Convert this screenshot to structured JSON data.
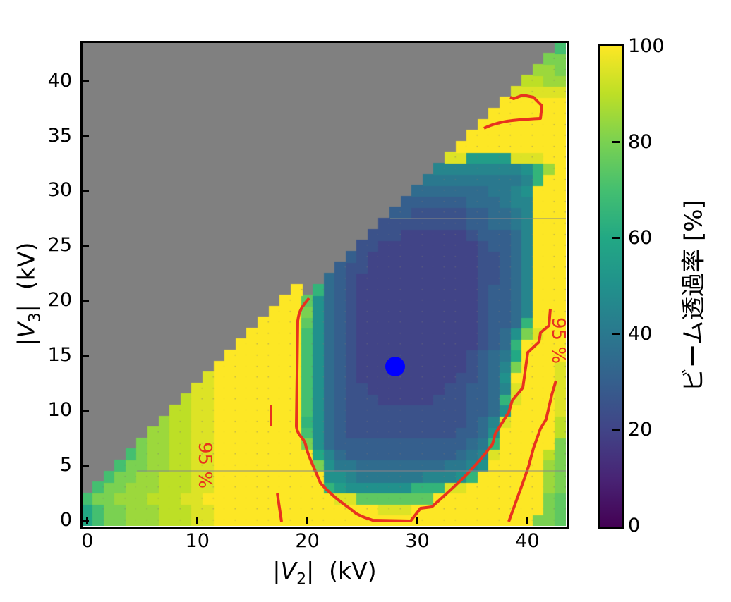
{
  "chart_data": {
    "type": "heatmap",
    "title": "",
    "xlabel": "|V2|  (kV)",
    "ylabel": "|V3|  (kV)",
    "xlim": [
      -0.5,
      43.5
    ],
    "ylim": [
      -0.5,
      43.5
    ],
    "xticks": [
      0,
      10,
      20,
      30,
      40
    ],
    "yticks": [
      0,
      5,
      10,
      15,
      20,
      25,
      30,
      35,
      40
    ],
    "colorbar": {
      "label": "ビーム透過率 [%]",
      "colormap": "viridis",
      "range": [
        0,
        100
      ],
      "ticks": [
        0,
        20,
        40,
        60,
        80,
        100
      ]
    },
    "masked_color": "#808080",
    "masked_region": "|V3| > |V2| + 1 (gray, no data)",
    "z_encoding": "each row string = V3 from 0 (first row) to 43; each char is one |V2| cell from 0 to 43; a=0%, b=5%, ... u=100% (value = index*5); '.' = no data",
    "z": [
      "moqqrrrsssttuuuuuuuuuuuuuuuuuuuuuuuuuuuuuqqpo",
      "moqqrrrsssttuuuuuuuuuuuuuuutttuuuuuuuuuuuuqpo",
      "oqqrrrsssttuuuuuuuuuuuuttpppppppuuuuuuuuuuqpo",
      ".oqqrrrsssttuuuuuuuuuunlkkkkkknnnttuuuuuuurqp",
      "..oqqrrsssttuuuuuuuuuukkjiiiiiijjjknuuuuuurqp",
      "...oqqrrssttuuuuuuuuuqkiihhhhhhhhiijkuuuuurqp",
      "....oqrrssttuuuuuuuuumjhgggggggggghijtuuuusqp",
      ".....qrrssttuuuuuuuuqkhgggggggggggghinuuuuuqp",
      "......rrssttuuuuuuuuokhgffffffffffgghkuuuuusp",
      ".......rssttuuuuuuuunkhgfffffffffffghjtuuuusq",
      "........ssttuuuuuuuuokhgfffffffffffgghkuuuuts",
      ".........sttuuuuuuuuokhgfffeeeeefffgghntuuuts",
      "..........ttuuuuuuuuokhgffeeeeeeeffgghjtuuuts",
      "...........tuuuuuuuuokhgfeeeeeeeeeffghkuuuuts",
      "............uuuuuuuuokhgfeeeeeeeeeefghjquuuts",
      ".............uuuuuuuokhgfeeeeeeeeeefghimuuuuu",
      "..............uuuuuuokhgfeeeeeeeeeeefghnuuuuu",
      "...............uuuuuokhgfeeeeeeeeeeefghkqtuuu",
      "................uuuupkhgfeeeeeeeeeeefgghnuuuu",
      ".................uuuqkhgfeeeeeeeeeeefgghjuuuu",
      "..................uupkhgfeeeeeeeeeeefgghjuuuu",
      "...................u.nhgfeeeeeeeeeeefgghjuuuu",
      "......................hgfeeeeeeeeeeeffghjuuuu",
      ".......................gffeeeeeeeeeeffghjuuuu",
      "........................gfeeeeeeeeeeffghjuuuu",
      ".........................ffeeeeeeeeefgghjuuuu",
      "..........................fffeeeeeefggghjuuuu",
      "...........................ffffffffgghhijuuuu",
      "............................ggfffffgghhijuuuu",
      ".............................gggggghhhijjuuuu",
      "..............................hhhhhhhiijkuuuu",
      "...............................iiiiiiiiijnuuu",
      "................................jjjjjjjjknruuu",
      ".................................ttlllltttuuuu",
      "..................................uuuuuuuuuuuu",
      "...................................uuuuuuuuuuu",
      "....................................uuuuuuuuuu",
      ".....................................uuuuuuuuu",
      "......................................uuuuuuuu",
      ".......................................tttttss",
      "........................................ssrrr",
      ".........................................rrqq",
      "..........................................qqp",
      "...........................................o"
    ],
    "contours": [
      {
        "level": 95,
        "label": "95 %",
        "description": "left band near |V2|≈10–11.5 from V3=0 to ≈10.5"
      },
      {
        "level": 95,
        "label": "95 %",
        "description": "closed-U contour around low-transmission basin from (20,20) down to (27,0.5) and up to (42,19)"
      },
      {
        "level": 95,
        "label": "95 %",
        "description": "right line from (38.5,0) up to (42,15)"
      },
      {
        "level": 95,
        "label": "",
        "description": "small loop near (36–41, 35–38.5)"
      }
    ],
    "markers": [
      {
        "x": 28,
        "y": 14,
        "color": "#0000ff",
        "shape": "circle"
      }
    ]
  },
  "axes": {
    "x_tick_labels": [
      "0",
      "10",
      "20",
      "30",
      "40"
    ],
    "y_tick_labels": [
      "0",
      "5",
      "10",
      "15",
      "20",
      "25",
      "30",
      "35",
      "40"
    ],
    "x_label_main": "|V",
    "x_label_sub": "2",
    "x_label_tail": "|  (kV)",
    "y_label_main": "|V",
    "y_label_sub": "3",
    "y_label_tail": "|  (kV)"
  },
  "colorbar": {
    "tick_labels": [
      "0",
      "20",
      "40",
      "60",
      "80",
      "100"
    ],
    "label": "ビーム透過率 [%]"
  },
  "contour_labels": [
    "95 %",
    "95 %"
  ],
  "colors": {
    "contour": "#e8321e",
    "marker": "#0000ff",
    "masked": "#808080"
  }
}
